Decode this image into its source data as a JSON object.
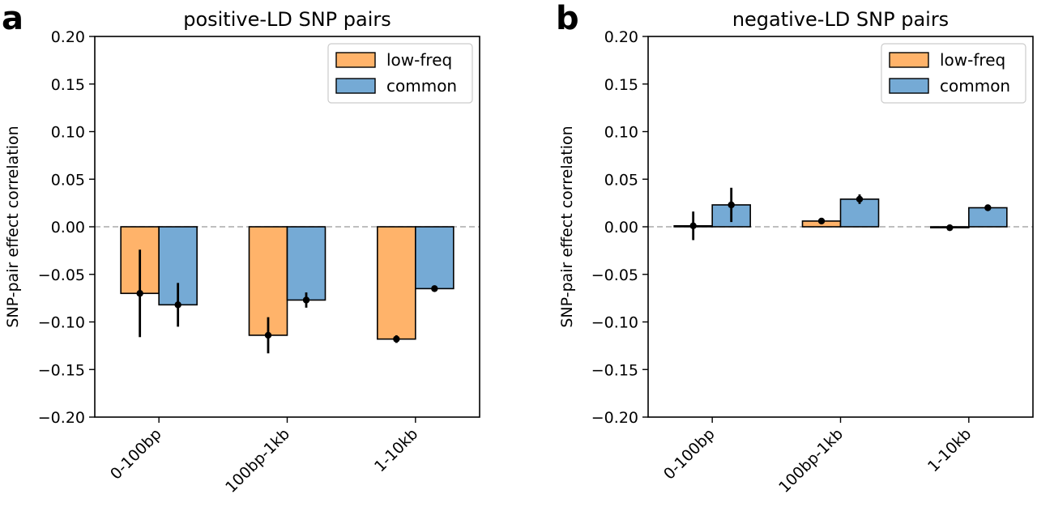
{
  "figure": {
    "colors": {
      "low_freq": "#ffb36a",
      "common": "#75aad5",
      "edge": "#000000",
      "zero_line": "#aaaaaa"
    }
  },
  "chart_data": [
    {
      "panel": "a",
      "type": "bar",
      "title": "positive-LD SNP pairs",
      "xlabel": "",
      "ylabel": "SNP-pair effect correlation",
      "ylim": [
        -0.2,
        0.2
      ],
      "yticks": [
        0.2,
        0.15,
        0.1,
        0.05,
        0.0,
        -0.05,
        -0.1,
        -0.15,
        -0.2
      ],
      "ytick_labels": [
        "0.20",
        "0.15",
        "0.10",
        "0.05",
        "0.00",
        "−0.05",
        "−0.10",
        "−0.15",
        "−0.20"
      ],
      "categories": [
        "0-100bp",
        "100bp-1kb",
        "1-10kb"
      ],
      "legend_position": "upper-right",
      "zero_line": "dashed",
      "series": [
        {
          "name": "low-freq",
          "color_key": "low_freq",
          "values": [
            -0.07,
            -0.114,
            -0.118
          ],
          "errors": [
            0.046,
            0.019,
            0.004
          ]
        },
        {
          "name": "common",
          "color_key": "common",
          "values": [
            -0.082,
            -0.077,
            -0.065
          ],
          "errors": [
            0.023,
            0.008,
            0.002
          ]
        }
      ]
    },
    {
      "panel": "b",
      "type": "bar",
      "title": "negative-LD SNP pairs",
      "xlabel": "",
      "ylabel": "SNP-pair effect correlation",
      "ylim": [
        -0.2,
        0.2
      ],
      "yticks": [
        0.2,
        0.15,
        0.1,
        0.05,
        0.0,
        -0.05,
        -0.1,
        -0.15,
        -0.2
      ],
      "ytick_labels": [
        "0.20",
        "0.15",
        "0.10",
        "0.05",
        "0.00",
        "−0.05",
        "−0.10",
        "−0.15",
        "−0.20"
      ],
      "categories": [
        "0-100bp",
        "100bp-1kb",
        "1-10kb"
      ],
      "legend_position": "upper-right",
      "zero_line": "dashed",
      "series": [
        {
          "name": "low-freq",
          "color_key": "low_freq",
          "values": [
            0.001,
            0.006,
            -0.001
          ],
          "errors": [
            0.015,
            0.002,
            0.0005
          ]
        },
        {
          "name": "common",
          "color_key": "common",
          "values": [
            0.023,
            0.029,
            0.02
          ],
          "errors": [
            0.018,
            0.005,
            0.002
          ]
        }
      ]
    }
  ]
}
